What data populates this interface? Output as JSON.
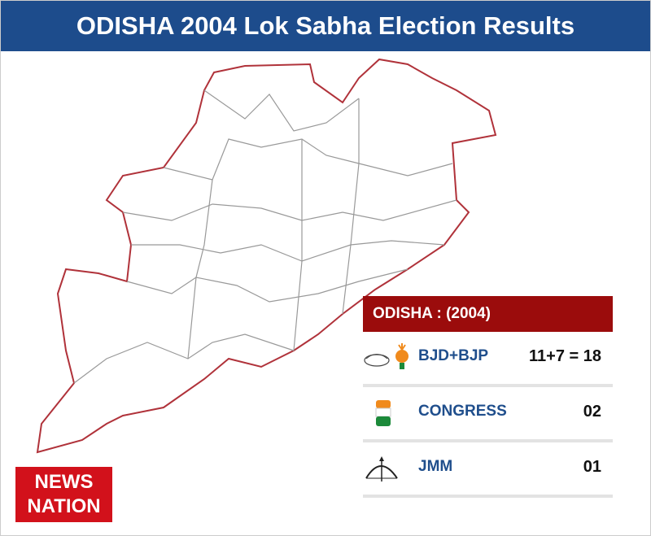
{
  "header": {
    "title": "ODISHA 2004 Lok Sabha Election Results"
  },
  "results": {
    "title": "ODISHA : (2004)",
    "rows": [
      {
        "party": "BJD+BJP",
        "seats": "11+7 = 18"
      },
      {
        "party": "CONGRESS",
        "seats": "02"
      },
      {
        "party": "JMM",
        "seats": "01"
      }
    ]
  },
  "logo": {
    "line1": "NEWS",
    "line2": "NATION"
  }
}
